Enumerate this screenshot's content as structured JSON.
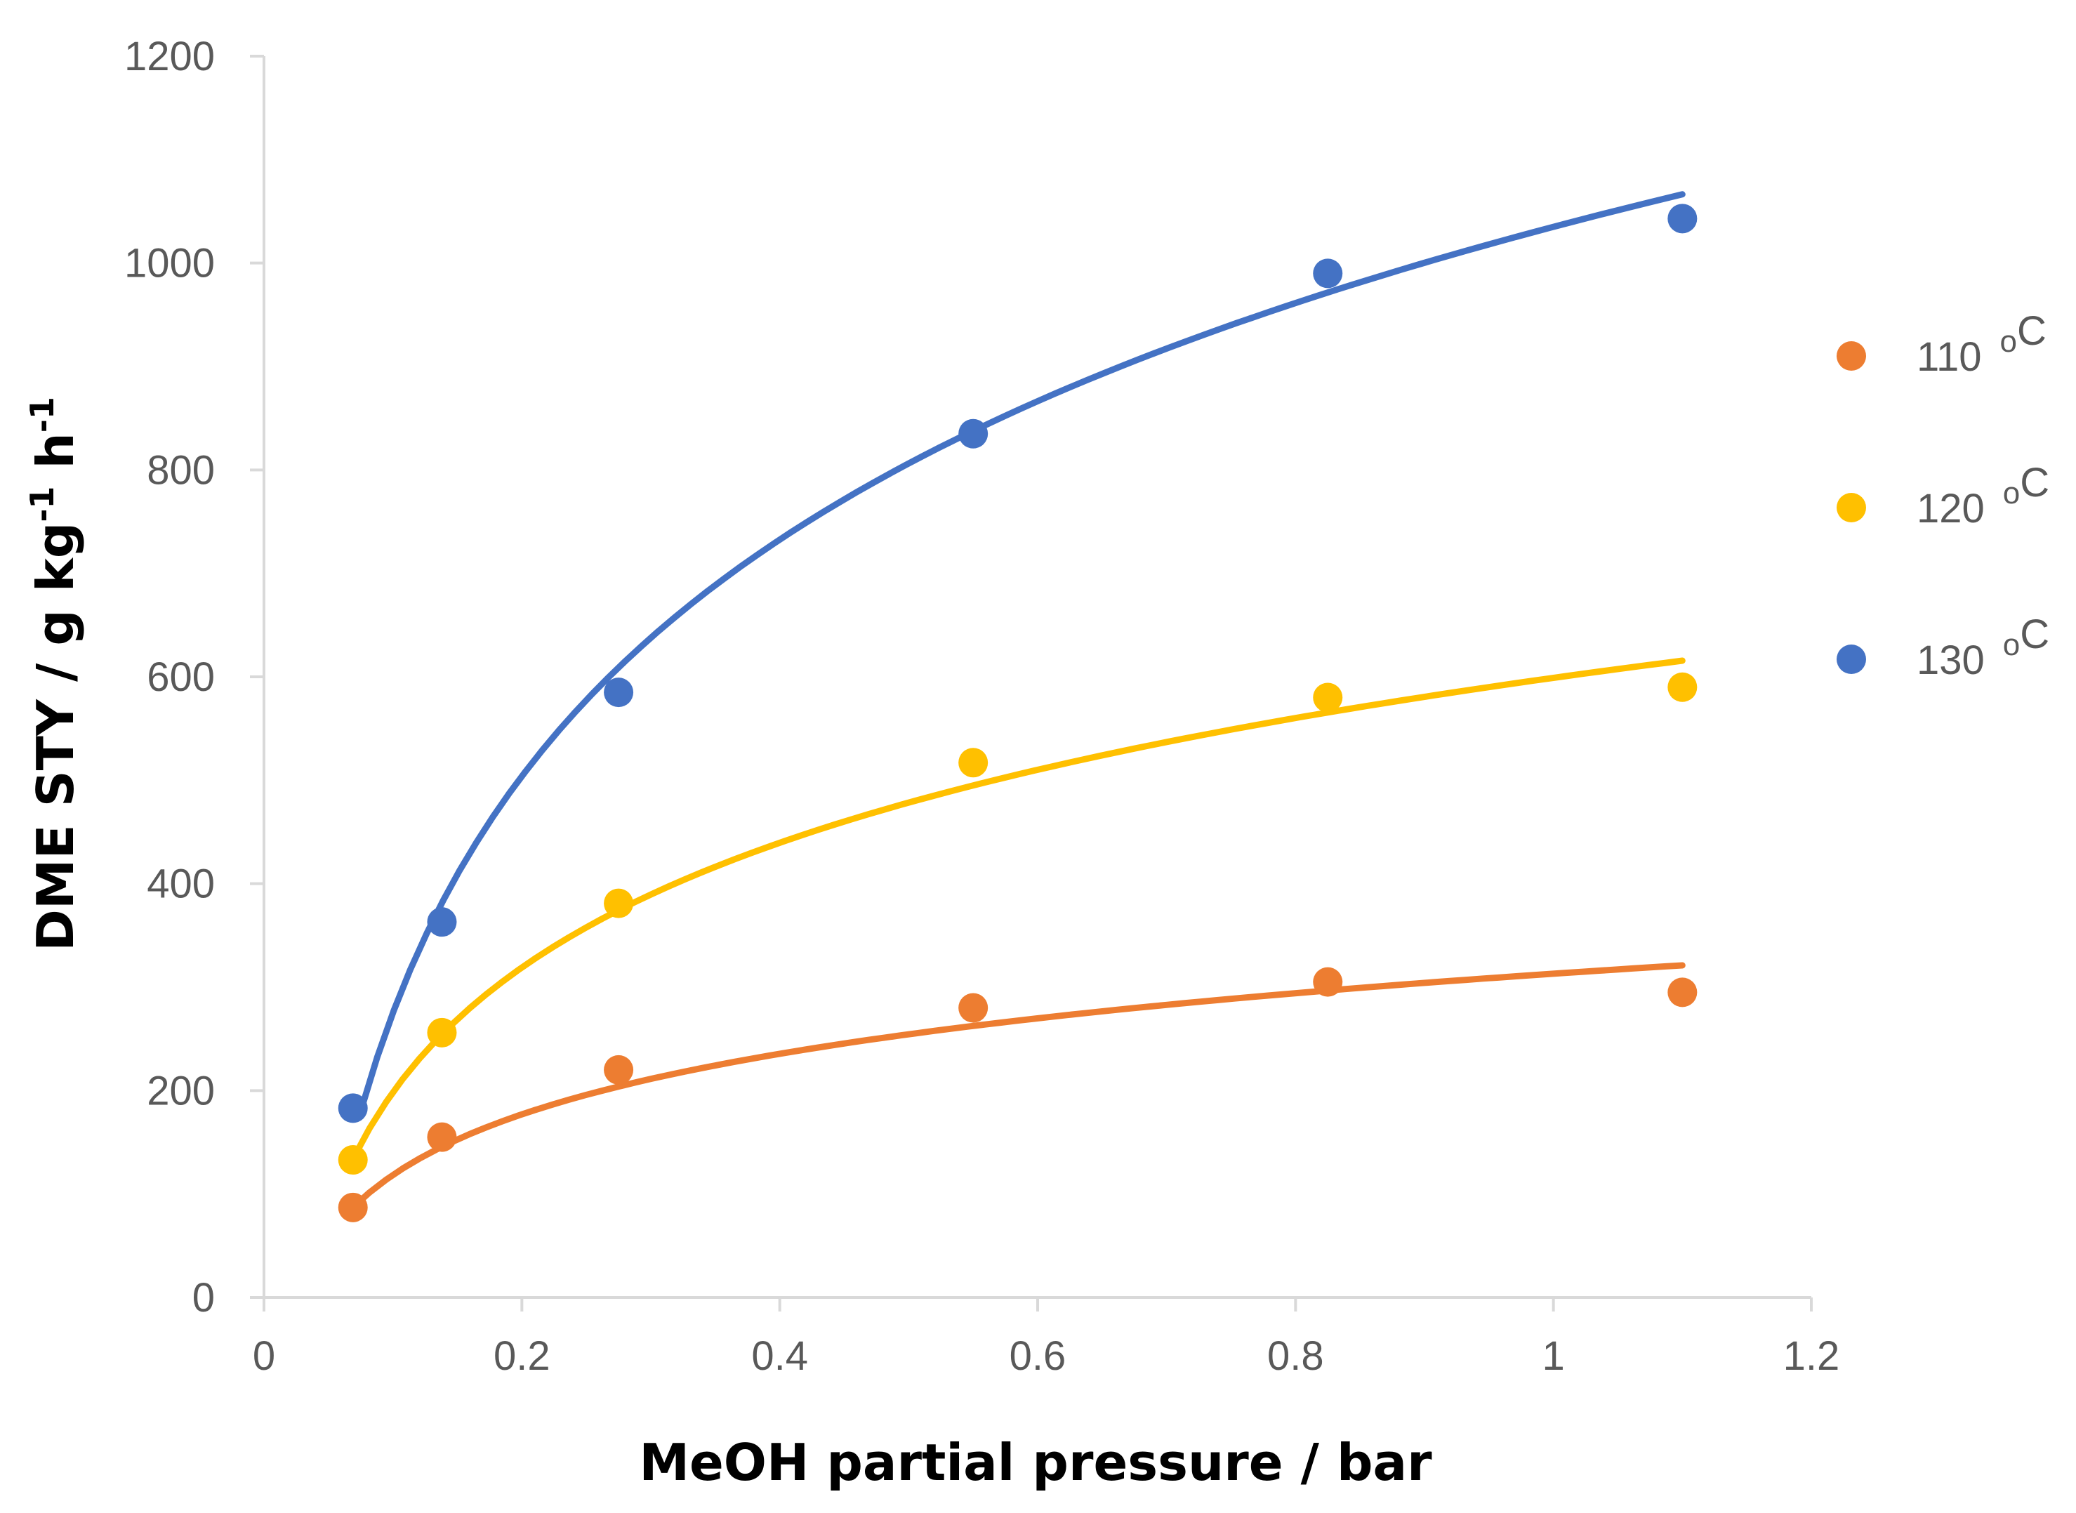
{
  "chart_data": {
    "type": "scatter",
    "title": "",
    "xlabel": "MeOH partial pressure / bar",
    "ylabel": "DME STY / g kg-1 h-1",
    "ylabel_parts": [
      "DME STY / g kg",
      "-1",
      " h",
      "-1"
    ],
    "xlim": [
      0,
      1.2
    ],
    "ylim": [
      0,
      1200
    ],
    "x_ticks": [
      "0",
      "0.2",
      "0.4",
      "0.6",
      "0.8",
      "1",
      "1.2"
    ],
    "y_ticks": [
      "0",
      "200",
      "400",
      "600",
      "800",
      "1000",
      "1200"
    ],
    "grid": false,
    "legend_position": "right",
    "series": [
      {
        "name": "110 oC",
        "legend_value": "110",
        "legend_unit_sup": "o",
        "legend_unit": "C",
        "color": "#ED7D31",
        "x": [
          0.069,
          0.138,
          0.275,
          0.55,
          0.825,
          1.1
        ],
        "values": [
          87,
          155,
          220,
          280,
          305,
          295
        ],
        "trend": {
          "type": "logarithmic",
          "a": 313,
          "b": 84.5,
          "x_range": [
            0.069,
            1.1
          ]
        }
      },
      {
        "name": "120 oC",
        "legend_value": "120",
        "legend_unit_sup": "o",
        "legend_unit": "C",
        "color": "#FFC000",
        "x": [
          0.069,
          0.138,
          0.275,
          0.55,
          0.825,
          1.1
        ],
        "values": [
          133,
          256,
          381,
          517,
          580,
          590
        ],
        "trend": {
          "type": "logarithmic",
          "a": 599,
          "b": 174,
          "x_range": [
            0.069,
            1.1
          ]
        }
      },
      {
        "name": "130 oC",
        "legend_value": "130",
        "legend_unit_sup": "o",
        "legend_unit": "C",
        "color": "#4472C4",
        "x": [
          0.069,
          0.138,
          0.275,
          0.55,
          0.825,
          1.1
        ],
        "values": [
          183,
          363,
          585,
          835,
          990,
          1043
        ],
        "trend": {
          "type": "logarithmic",
          "a": 1035,
          "b": 330,
          "x_range": [
            0.075,
            1.1
          ]
        }
      }
    ]
  }
}
